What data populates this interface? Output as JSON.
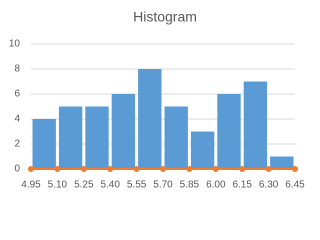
{
  "chart_data": {
    "type": "histogram",
    "title": "Histogram",
    "bins": [
      4.95,
      5.1,
      5.25,
      5.4,
      5.55,
      5.7,
      5.85,
      6.0,
      6.15,
      6.3,
      6.45
    ],
    "values": [
      4,
      5,
      5,
      6,
      8,
      5,
      3,
      6,
      7,
      1
    ],
    "color": "#5b9bd5",
    "overlay": {
      "type": "line",
      "color": "#ed7d31",
      "values": [
        0,
        0,
        0,
        0,
        0,
        0,
        0,
        0,
        0,
        0,
        0
      ]
    },
    "xlim": [
      4.95,
      6.45
    ],
    "xticks": [
      4.95,
      {
        "value": 5.1,
        "label": "5.10"
      },
      5.25,
      {
        "value": 5.4,
        "label": "5.40"
      },
      5.55,
      {
        "value": 5.7,
        "label": "5.70"
      },
      5.85,
      {
        "value": 6.0,
        "label": "6.00"
      },
      6.15,
      {
        "value": 6.3,
        "label": "6.30"
      },
      6.45
    ],
    "ylim": [
      0,
      10
    ],
    "yticks": [
      0,
      2,
      4,
      6,
      8,
      10
    ],
    "grid": true
  }
}
